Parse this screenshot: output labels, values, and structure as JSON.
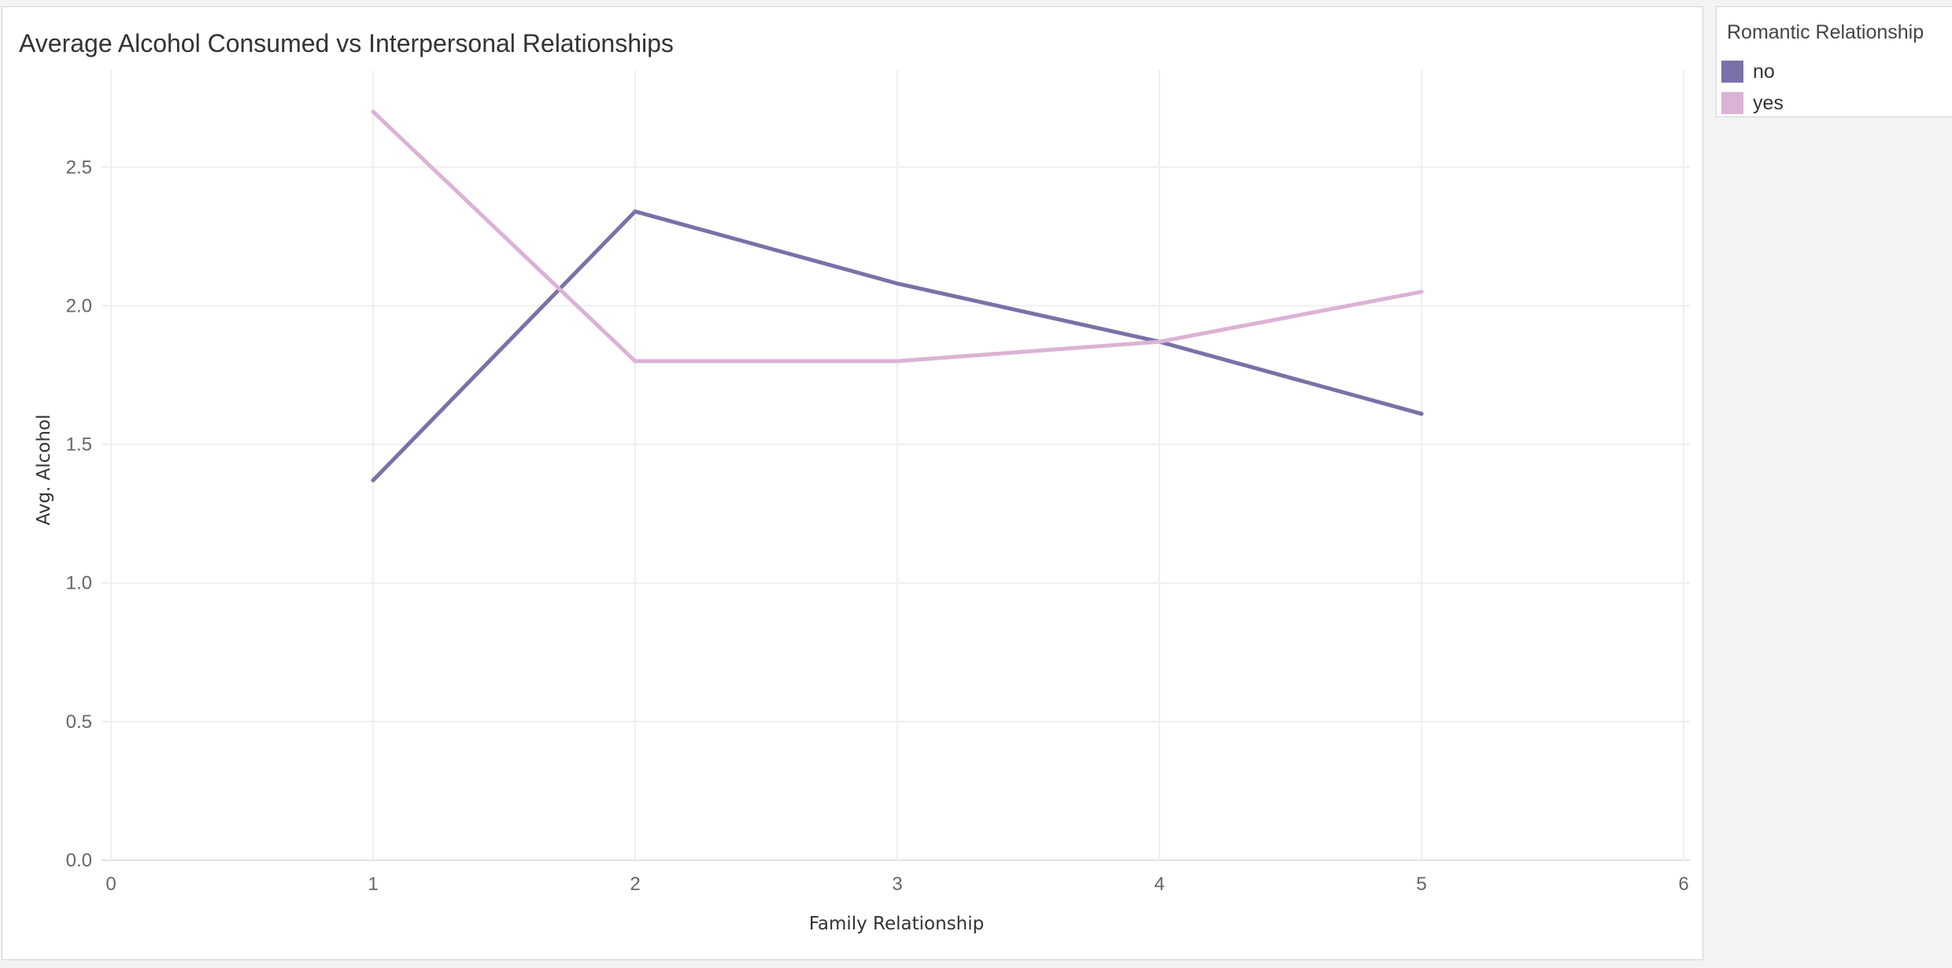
{
  "chart_data": {
    "type": "line",
    "title": "Average Alcohol Consumed vs Interpersonal Relationships",
    "xlabel": "Family Relationship",
    "ylabel": "Avg. Alcohol",
    "xlim": [
      0,
      6
    ],
    "ylim": [
      0,
      2.85
    ],
    "xticks": [
      "0",
      "1",
      "2",
      "3",
      "4",
      "5",
      "6"
    ],
    "yticks": [
      "0.0",
      "0.5",
      "1.0",
      "1.5",
      "2.0",
      "2.5"
    ],
    "grid": true,
    "legend": {
      "title": "Romantic Relationship",
      "position": "right"
    },
    "x": [
      1,
      2,
      3,
      4,
      5
    ],
    "series": [
      {
        "name": "no",
        "color": "#7b71a8",
        "values": [
          1.37,
          2.34,
          2.08,
          1.87,
          1.61
        ]
      },
      {
        "name": "yes",
        "color": "#dcb2d5",
        "values": [
          2.7,
          1.8,
          1.8,
          1.87,
          2.05
        ]
      }
    ]
  }
}
